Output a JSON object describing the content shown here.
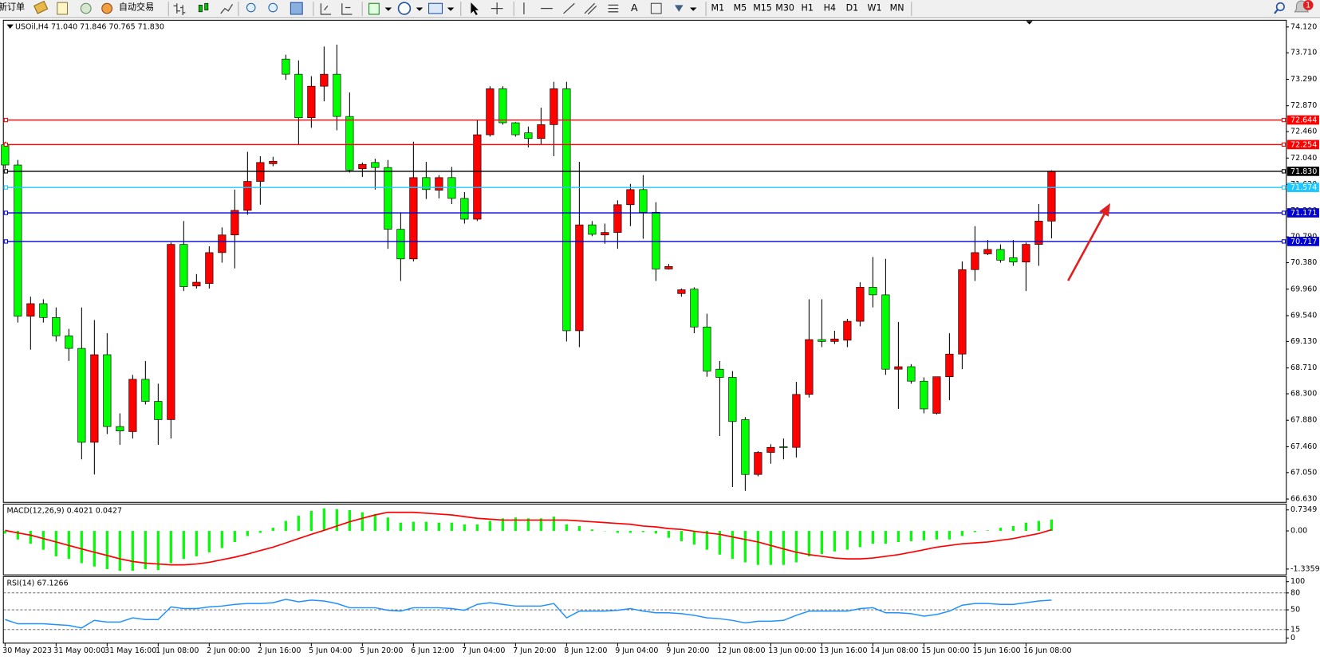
{
  "toolbar": {
    "new_order": "新订单",
    "auto_trading": "自动交易",
    "text_tool": "A",
    "timeframes": [
      "M1",
      "M5",
      "M15",
      "M30",
      "H1",
      "H4",
      "D1",
      "W1",
      "MN"
    ],
    "notifications": 1
  },
  "chart_data": [
    {
      "type": "candlestick",
      "title": "USOil,H4  71.040 71.846 70.765 71.830",
      "categories": [
        "30 May 2023",
        null,
        null,
        null,
        "31 May 00:00",
        null,
        null,
        null,
        "31 May 16:00",
        null,
        null,
        null,
        "1 Jun 08:00",
        null,
        null,
        null,
        "2 Jun 00:00",
        null,
        null,
        null,
        "2 Jun 16:00",
        null,
        null,
        null,
        "5 Jun 04:00",
        null,
        null,
        null,
        "5 Jun 20:00",
        null,
        null,
        null,
        "6 Jun 12:00",
        null,
        null,
        null,
        "7 Jun 04:00",
        null,
        null,
        null,
        "7 Jun 20:00",
        null,
        null,
        null,
        "8 Jun 12:00",
        null,
        null,
        null,
        "9 Jun 04:00",
        null,
        null,
        null,
        "9 Jun 20:00",
        null,
        null,
        null,
        "12 Jun 08:00",
        null,
        null,
        null,
        "13 Jun 00:00",
        null,
        null,
        null,
        "13 Jun 16:00",
        null,
        null,
        null,
        "14 Jun 08:00",
        null,
        null,
        null,
        "15 Jun 00:00",
        null,
        null,
        null,
        "15 Jun 16:00",
        null,
        null,
        null,
        "16 Jun 08:00",
        null,
        null
      ],
      "open": [
        72.25,
        71.93,
        69.53,
        69.73,
        69.51,
        69.22,
        69.02,
        67.53,
        68.92,
        67.78,
        67.7,
        68.53,
        68.18,
        67.89,
        70.67,
        70.01,
        70.05,
        70.54,
        70.82,
        71.21,
        71.67,
        71.95,
        73.61,
        73.37,
        72.68,
        73.18,
        73.37,
        72.7,
        71.87,
        71.97,
        71.89,
        70.91,
        70.44,
        71.73,
        71.53,
        71.73,
        71.4,
        71.07,
        72.41,
        73.14,
        72.6,
        72.44,
        72.35,
        72.57,
        73.14,
        69.3,
        70.98,
        70.82,
        70.86,
        71.3,
        71.54,
        71.18,
        70.28,
        69.89,
        69.96,
        69.36,
        68.69,
        68.56,
        67.89,
        67.02,
        67.37,
        67.46,
        67.45,
        68.29,
        69.16,
        69.13,
        69.15,
        69.45,
        69.99,
        69.87,
        68.69,
        68.73,
        68.5,
        67.99,
        68.57,
        68.93,
        70.27,
        70.52,
        70.59,
        70.46,
        70.39,
        70.67,
        71.04
      ],
      "high": [
        72.3,
        72.01,
        69.84,
        69.8,
        69.67,
        69.33,
        69.67,
        69.47,
        69.26,
        67.99,
        68.6,
        68.82,
        68.46,
        70.7,
        71.04,
        70.2,
        70.64,
        70.94,
        71.54,
        72.14,
        72.07,
        72.06,
        73.68,
        73.59,
        73.34,
        73.81,
        73.84,
        73.08,
        71.97,
        72.03,
        72.01,
        71.18,
        72.3,
        71.98,
        71.77,
        71.9,
        71.5,
        72.65,
        73.18,
        73.18,
        72.61,
        72.54,
        72.84,
        73.25,
        73.25,
        71.98,
        71.04,
        71.0,
        71.37,
        71.63,
        71.77,
        71.34,
        70.36,
        69.97,
        69.99,
        69.57,
        68.82,
        68.66,
        67.93,
        67.39,
        67.5,
        67.59,
        68.49,
        69.8,
        69.8,
        69.3,
        69.49,
        70.07,
        70.47,
        70.44,
        69.44,
        68.77,
        68.56,
        68.57,
        69.26,
        70.4,
        70.96,
        70.74,
        70.67,
        70.74,
        70.7,
        71.31,
        71.846
      ],
      "low": [
        71.87,
        69.43,
        69.0,
        69.43,
        69.13,
        68.82,
        67.26,
        67.02,
        67.66,
        67.49,
        67.59,
        68.13,
        67.49,
        67.59,
        69.93,
        69.97,
        69.97,
        70.38,
        70.29,
        71.14,
        71.3,
        71.91,
        73.28,
        72.25,
        72.52,
        72.94,
        72.48,
        71.81,
        71.74,
        71.54,
        70.6,
        70.09,
        70.4,
        71.39,
        71.4,
        71.31,
        71.0,
        71.04,
        72.38,
        72.57,
        72.38,
        72.21,
        72.25,
        72.07,
        69.13,
        69.04,
        70.8,
        70.68,
        70.6,
        70.96,
        70.76,
        70.09,
        70.27,
        69.84,
        69.26,
        68.57,
        67.63,
        66.82,
        66.76,
        66.99,
        67.19,
        67.26,
        67.29,
        68.24,
        69.04,
        69.09,
        69.04,
        69.37,
        69.67,
        68.6,
        68.06,
        68.46,
        67.99,
        67.97,
        68.2,
        68.69,
        70.09,
        70.5,
        70.38,
        70.33,
        69.93,
        70.33,
        70.765
      ],
      "close": [
        71.93,
        69.53,
        69.73,
        69.51,
        69.22,
        69.02,
        67.53,
        68.92,
        67.78,
        67.71,
        68.53,
        68.18,
        67.89,
        70.67,
        70.0,
        70.07,
        70.54,
        70.82,
        71.21,
        71.67,
        71.97,
        71.99,
        73.37,
        72.68,
        73.18,
        73.37,
        72.7,
        71.85,
        71.94,
        71.89,
        70.91,
        70.44,
        71.73,
        71.54,
        71.73,
        71.4,
        71.07,
        72.41,
        73.14,
        72.6,
        72.41,
        72.35,
        72.57,
        73.14,
        69.3,
        70.98,
        70.83,
        70.86,
        71.3,
        71.54,
        71.18,
        70.28,
        70.32,
        69.95,
        69.36,
        68.66,
        68.56,
        67.86,
        67.02,
        67.37,
        67.45,
        67.45,
        68.29,
        69.16,
        69.13,
        69.17,
        69.45,
        69.99,
        69.87,
        68.69,
        68.73,
        68.5,
        68.06,
        68.57,
        68.93,
        70.27,
        70.54,
        70.59,
        70.42,
        70.39,
        70.67,
        71.04,
        71.83
      ],
      "up_color": "#ff0000",
      "down_color": "#00ff00",
      "wick_color": "#000000",
      "ylim": [
        66.577,
        74.227
      ],
      "yticks": [
        {
          "value": 74.12,
          "label": "74.120"
        },
        {
          "value": 73.71,
          "label": "73.710"
        },
        {
          "value": 73.29,
          "label": "73.290"
        },
        {
          "value": 72.87,
          "label": "72.870"
        },
        {
          "value": 72.46,
          "label": "72.460"
        },
        {
          "value": 72.04,
          "label": "72.040"
        },
        {
          "value": 71.62,
          "label": "71.620"
        },
        {
          "value": 71.2,
          "label": "71.200"
        },
        {
          "value": 70.79,
          "label": "70.790"
        },
        {
          "value": 70.38,
          "label": "70.380"
        },
        {
          "value": 69.96,
          "label": "69.960"
        },
        {
          "value": 69.54,
          "label": "69.540"
        },
        {
          "value": 69.13,
          "label": "69.130"
        },
        {
          "value": 68.71,
          "label": "68.710"
        },
        {
          "value": 68.3,
          "label": "68.300"
        },
        {
          "value": 67.88,
          "label": "67.880"
        },
        {
          "value": 67.46,
          "label": "67.460"
        },
        {
          "value": 67.05,
          "label": "67.050"
        },
        {
          "value": 66.63,
          "label": "66.630"
        }
      ],
      "levels": [
        {
          "value": 72.644,
          "label": "72.644",
          "color": "#ff0000"
        },
        {
          "value": 72.254,
          "label": "72.254",
          "color": "#ff0000"
        },
        {
          "value": 71.83,
          "label": "71.830",
          "color": "#000000"
        },
        {
          "value": 71.574,
          "label": "71.574",
          "color": "#1ec8ff"
        },
        {
          "value": 71.171,
          "label": "71.171",
          "color": "#0000d0"
        },
        {
          "value": 70.717,
          "label": "70.717",
          "color": "#0000d0"
        }
      ]
    },
    {
      "type": "macd",
      "title": "MACD(12,26,9) 0.4021 0.0427",
      "histogram": [
        -0.09,
        -0.3,
        -0.45,
        -0.66,
        -0.89,
        -0.98,
        -1.13,
        -1.25,
        -1.34,
        -1.4,
        -1.4,
        -1.34,
        -1.37,
        -1.13,
        -0.98,
        -0.89,
        -0.75,
        -0.6,
        -0.39,
        -0.18,
        -0.07,
        0.11,
        0.35,
        0.53,
        0.7,
        0.79,
        0.76,
        0.73,
        0.65,
        0.59,
        0.47,
        0.29,
        0.32,
        0.32,
        0.29,
        0.29,
        0.23,
        0.23,
        0.35,
        0.44,
        0.47,
        0.44,
        0.44,
        0.5,
        0.23,
        0.17,
        0.05,
        -0.01,
        -0.07,
        -0.07,
        -0.04,
        -0.09,
        -0.24,
        -0.36,
        -0.48,
        -0.66,
        -0.83,
        -0.98,
        -1.1,
        -1.19,
        -1.19,
        -1.19,
        -1.1,
        -0.89,
        -0.81,
        -0.72,
        -0.66,
        -0.57,
        -0.45,
        -0.45,
        -0.39,
        -0.36,
        -0.33,
        -0.3,
        -0.3,
        -0.18,
        -0.04,
        0.02,
        0.11,
        0.17,
        0.29,
        0.35,
        0.4021
      ],
      "signal": [
        0.02,
        -0.07,
        -0.15,
        -0.27,
        -0.39,
        -0.51,
        -0.63,
        -0.75,
        -0.86,
        -0.98,
        -1.07,
        -1.13,
        -1.16,
        -1.19,
        -1.19,
        -1.16,
        -1.1,
        -1.01,
        -0.92,
        -0.81,
        -0.69,
        -0.57,
        -0.42,
        -0.27,
        -0.12,
        0.02,
        0.17,
        0.32,
        0.44,
        0.56,
        0.65,
        0.65,
        0.65,
        0.62,
        0.59,
        0.56,
        0.5,
        0.44,
        0.41,
        0.38,
        0.38,
        0.38,
        0.38,
        0.38,
        0.38,
        0.35,
        0.32,
        0.29,
        0.26,
        0.23,
        0.17,
        0.14,
        0.08,
        0.05,
        -0.01,
        -0.07,
        -0.12,
        -0.21,
        -0.3,
        -0.39,
        -0.51,
        -0.63,
        -0.75,
        -0.83,
        -0.89,
        -0.95,
        -0.98,
        -0.98,
        -0.95,
        -0.89,
        -0.83,
        -0.75,
        -0.66,
        -0.57,
        -0.51,
        -0.45,
        -0.42,
        -0.39,
        -0.33,
        -0.27,
        -0.18,
        -0.09,
        0.0427
      ],
      "histogram_color": "#00ff00",
      "signal_color": "#ff0000",
      "ylim": [
        -1.54,
        0.94
      ],
      "yticks": [
        0.7349,
        {
          "value": 0,
          "label": "0.00"
        },
        -1.3359
      ]
    },
    {
      "type": "line",
      "title": "RSI(14) 67.1266",
      "values": [
        32.8,
        25.4,
        25.4,
        25.4,
        23.9,
        22.4,
        17.9,
        31.3,
        28.4,
        28.4,
        35.8,
        32.8,
        32.8,
        55.2,
        52.2,
        52.2,
        55.2,
        56.7,
        59.7,
        61.2,
        61.2,
        62.7,
        68.7,
        64.2,
        67.2,
        65.7,
        61.2,
        53.7,
        53.7,
        53.7,
        49.3,
        47.8,
        53.7,
        53.7,
        53.7,
        52.2,
        49.3,
        59.7,
        62.7,
        59.7,
        56.7,
        56.7,
        56.7,
        61.2,
        35.8,
        47.8,
        47.8,
        47.8,
        49.3,
        52.2,
        47.8,
        44.8,
        44.8,
        43.3,
        40.3,
        35.8,
        34.3,
        31.3,
        26.9,
        29.9,
        29.9,
        31.3,
        40.3,
        47.8,
        47.8,
        47.8,
        47.8,
        52.2,
        53.7,
        44.8,
        44.8,
        43.3,
        38.8,
        41.8,
        47.8,
        58.2,
        61.2,
        61.2,
        59.7,
        59.7,
        62.7,
        65.7,
        67.1266
      ],
      "color": "#1e90ff",
      "ylim": [
        -9,
        109
      ],
      "yticks": [
        100,
        80,
        50,
        15,
        0
      ]
    }
  ]
}
